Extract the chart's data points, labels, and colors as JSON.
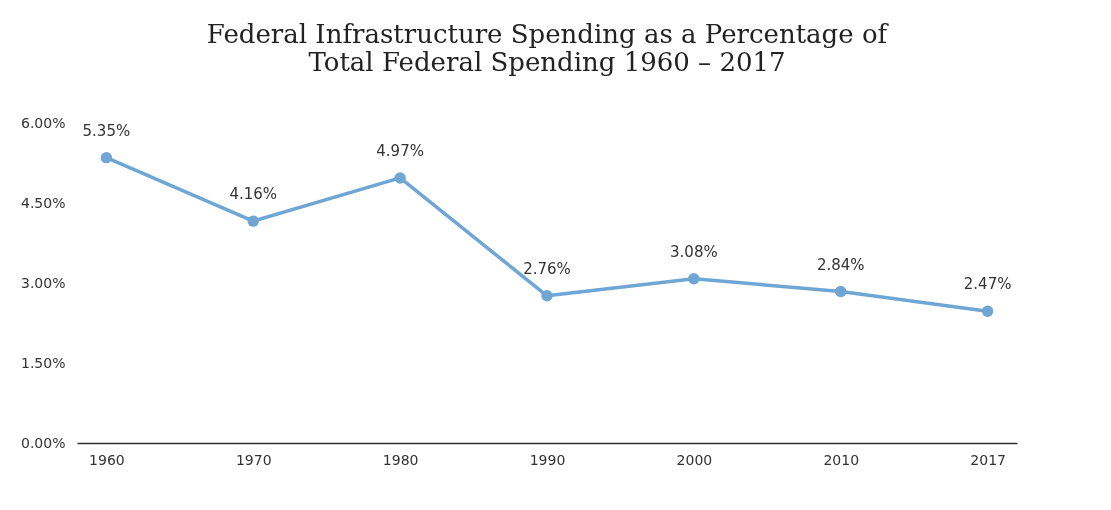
{
  "chart_data": {
    "type": "line",
    "title": "Federal Infrastructure Spending as a Percentage of\nTotal Federal Spending 1960 – 2017",
    "categories": [
      "1960",
      "1970",
      "1980",
      "1990",
      "2000",
      "2010",
      "2017"
    ],
    "series": [
      {
        "color": "#6fa6d4",
        "values": [
          5.35,
          4.16,
          4.97,
          2.76,
          3.08,
          2.84,
          2.47
        ],
        "value_labels": [
          "5.35%",
          "4.16%",
          "4.97%",
          "2.76%",
          "3.08%",
          "2.84%",
          "2.47%"
        ]
      }
    ],
    "ylim": [
      0,
      6
    ],
    "yticks": [
      {
        "value": 0,
        "label": "0.00%"
      },
      {
        "value": 1.5,
        "label": "1.50%"
      },
      {
        "value": 3,
        "label": "3.00%"
      },
      {
        "value": 4.5,
        "label": "4.50%"
      },
      {
        "value": 6,
        "label": "6.00%"
      }
    ],
    "grid": false,
    "marker": "circle",
    "line_style": "solid"
  }
}
